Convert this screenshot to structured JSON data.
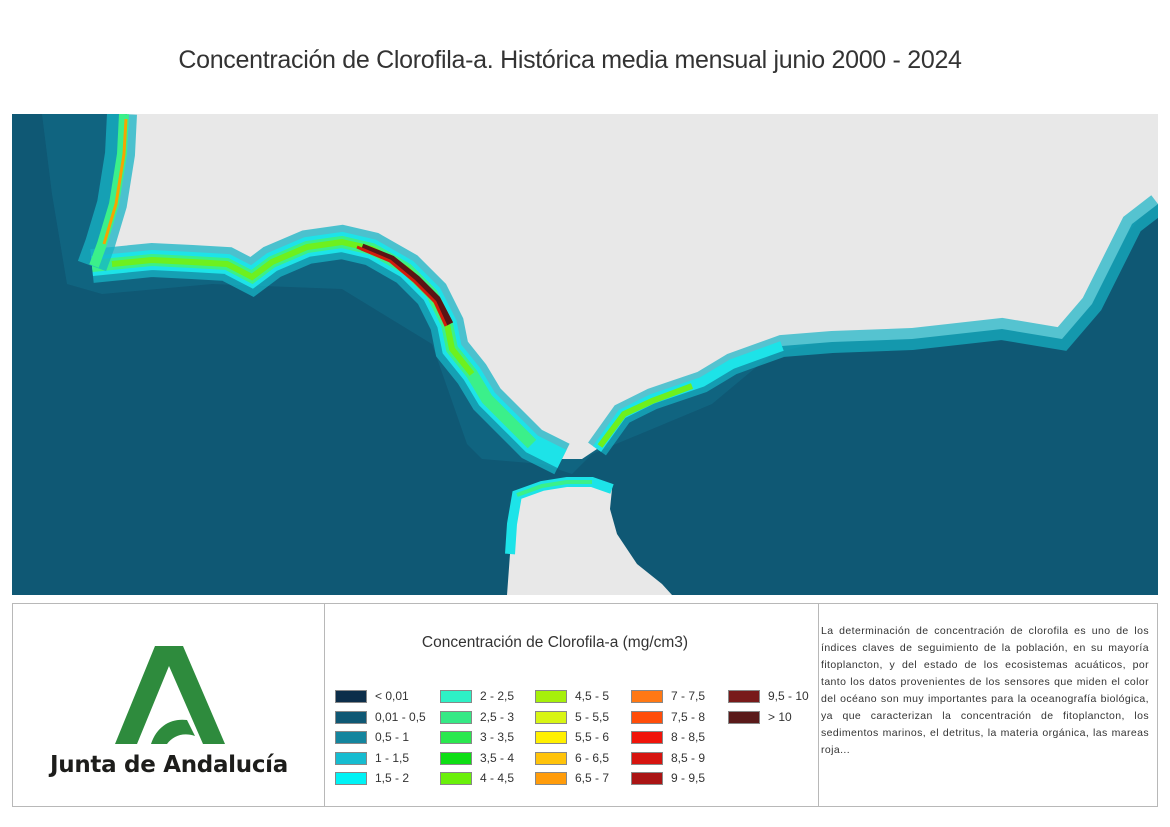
{
  "title": "Concentración de Clorofila-a. Histórica media mensual junio 2000 - 2024",
  "map": {
    "land_color": "#e8e8e8",
    "sea_color": "#0f5874",
    "coast_band_colors": [
      "#137f98",
      "#17b4c6",
      "#1de3e8",
      "#3bf08a",
      "#6ef01e",
      "#d8f000",
      "#f5a500",
      "#d41c0c",
      "#5a1414"
    ]
  },
  "logo": {
    "org_name": "Junta de Andalucía",
    "icon": "junta-andalucia-logo",
    "color": "#2e8b3d"
  },
  "legend": {
    "title": "Concentración de Clorofila-a (mg/cm3)",
    "items": [
      {
        "label": "< 0,01",
        "color": "#0c2e4a"
      },
      {
        "label": "0,01 - 0,5",
        "color": "#0f5874"
      },
      {
        "label": "0,5 - 1",
        "color": "#14859e"
      },
      {
        "label": "1 - 1,5",
        "color": "#16bcd0"
      },
      {
        "label": "1,5 - 2",
        "color": "#00f2f5"
      },
      {
        "label": "2 - 2,5",
        "color": "#2ef1c6"
      },
      {
        "label": "2,5 - 3",
        "color": "#35e985"
      },
      {
        "label": "3 - 3,5",
        "color": "#2ae84f"
      },
      {
        "label": "3,5 - 4",
        "color": "#0ede14"
      },
      {
        "label": "4 - 4,5",
        "color": "#6af00a"
      },
      {
        "label": "4,5 - 5",
        "color": "#a6f00a"
      },
      {
        "label": "5 - 5,5",
        "color": "#d8f514"
      },
      {
        "label": "5,5 - 6",
        "color": "#fff000"
      },
      {
        "label": "6 - 6,5",
        "color": "#ffc30a"
      },
      {
        "label": "6,5 - 7",
        "color": "#ff9c0a"
      },
      {
        "label": "7 - 7,5",
        "color": "#ff7814"
      },
      {
        "label": "7,5 - 8",
        "color": "#ff4d0a"
      },
      {
        "label": "8 - 8,5",
        "color": "#f0140a"
      },
      {
        "label": "8,5 - 9",
        "color": "#d6140f"
      },
      {
        "label": "9 - 9,5",
        "color": "#aa1414"
      },
      {
        "label": "9,5 - 10",
        "color": "#781a1a"
      },
      {
        "label": "> 10",
        "color": "#5a1a1a"
      }
    ]
  },
  "description": "La determinación de concentración de clorofila es uno de los índices claves de seguimiento de la población, en su mayoría fitoplancton, y del estado de los ecosistemas acuáticos, por tanto los datos provenientes de los sensores que miden el color del océano son muy importantes para la oceanografía biológica, ya que caracterizan la concentración de fitoplancton, los sedimentos marinos, el detritus, la materia orgánica, las mareas roja..."
}
